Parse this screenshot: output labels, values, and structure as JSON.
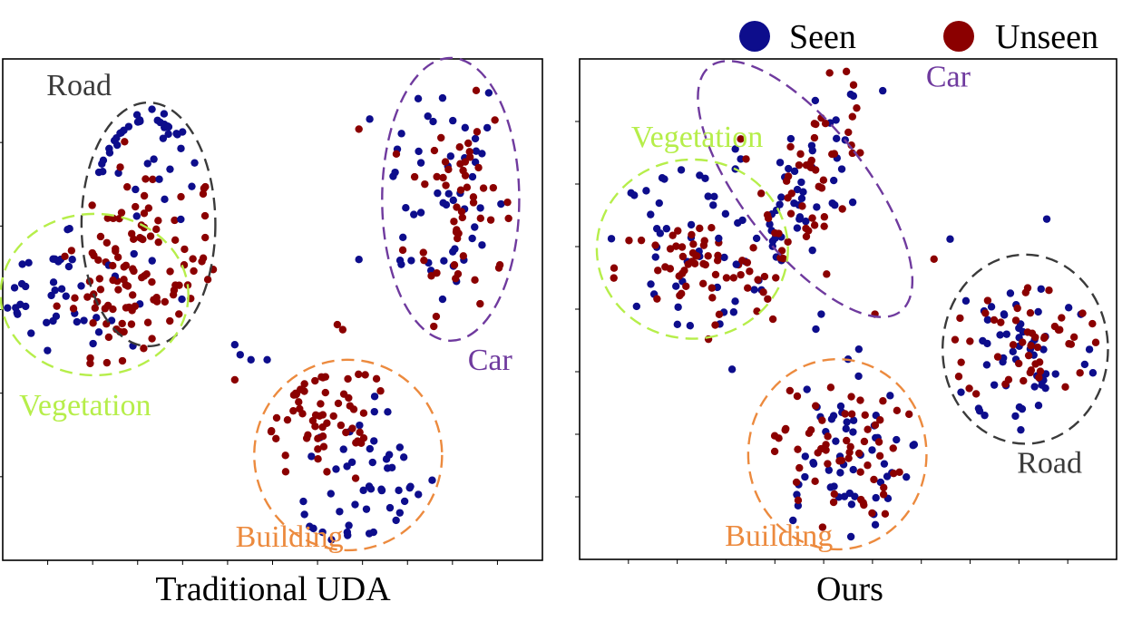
{
  "legend": {
    "placement": "top-right",
    "items": [
      {
        "label": "Seen",
        "color": "#0d0d8c"
      },
      {
        "label": "Unseen",
        "color": "#8b0000"
      }
    ]
  },
  "cluster_colors": {
    "Road": "#3a3a3a",
    "Car": "#6f3a9e",
    "Vegetation": "#b6ee4a",
    "Building": "#ec8a3e"
  },
  "chart_data": [
    {
      "type": "scatter",
      "caption": "Traditional UDA",
      "xlim": [
        0,
        100
      ],
      "ylim": [
        0,
        100
      ],
      "xticks": 12,
      "yticks": 6,
      "clusters": [
        {
          "name": "Road",
          "cx": 27,
          "cy": 67,
          "rx": 12.4,
          "ry": 24.3,
          "label_pos": "top-left",
          "points": [
            {
              "series": "Seen",
              "x": 27,
              "y": 87,
              "sx": 7,
              "sy": 7,
              "n": 40
            },
            {
              "series": "Unseen",
              "x": 27,
              "y": 61,
              "sx": 7,
              "sy": 9,
              "n": 55
            }
          ]
        },
        {
          "name": "Car",
          "cx": 83,
          "cy": 72,
          "rx": 12.7,
          "ry": 28.2,
          "label_pos": "bottom-right",
          "points": [
            {
              "series": "Seen",
              "x": 81,
              "y": 74,
              "sx": 6,
              "sy": 13,
              "n": 50
            },
            {
              "series": "Unseen",
              "x": 85,
              "y": 72,
              "sx": 5,
              "sy": 12,
              "n": 55
            }
          ]
        },
        {
          "name": "Vegetation",
          "cx": 17,
          "cy": 53,
          "rx": 17.4,
          "ry": 16.1,
          "label_pos": "bottom-left",
          "points": [
            {
              "series": "Seen",
              "x": 11,
              "y": 54,
              "sx": 8,
              "sy": 7,
              "n": 45
            },
            {
              "series": "Unseen",
              "x": 22,
              "y": 53,
              "sx": 6,
              "sy": 6,
              "n": 55
            }
          ]
        },
        {
          "name": "Building",
          "cx": 64,
          "cy": 21,
          "rx": 17.4,
          "ry": 19.0,
          "label_pos": "bottom-left",
          "points": [
            {
              "series": "Seen",
              "x": 67,
              "y": 14,
              "sx": 7,
              "sy": 8,
              "n": 50
            },
            {
              "series": "Unseen",
              "x": 59,
              "y": 28,
              "sx": 7,
              "sy": 7,
              "n": 60
            }
          ]
        }
      ],
      "outliers": [
        {
          "series": "Seen",
          "x": 29,
          "y": 76
        },
        {
          "series": "Seen",
          "x": 28,
          "y": 80
        },
        {
          "series": "Seen",
          "x": 31,
          "y": 78
        },
        {
          "series": "Seen",
          "x": 30,
          "y": 72
        },
        {
          "series": "Seen",
          "x": 33,
          "y": 68
        },
        {
          "series": "Seen",
          "x": 43,
          "y": 43
        },
        {
          "series": "Seen",
          "x": 44,
          "y": 41
        },
        {
          "series": "Seen",
          "x": 46,
          "y": 40
        },
        {
          "series": "Seen",
          "x": 49,
          "y": 40
        },
        {
          "series": "Seen",
          "x": 66,
          "y": 60
        },
        {
          "series": "Seen",
          "x": 68,
          "y": 88
        },
        {
          "series": "Unseen",
          "x": 39,
          "y": 58
        },
        {
          "series": "Unseen",
          "x": 38,
          "y": 56
        },
        {
          "series": "Unseen",
          "x": 62,
          "y": 47
        },
        {
          "series": "Unseen",
          "x": 63,
          "y": 46
        },
        {
          "series": "Unseen",
          "x": 43,
          "y": 36
        },
        {
          "series": "Unseen",
          "x": 66,
          "y": 86
        }
      ]
    },
    {
      "type": "scatter",
      "caption": "Ours",
      "xlim": [
        0,
        100
      ],
      "ylim": [
        0,
        100
      ],
      "xticks": 11,
      "yticks": 8,
      "clusters": [
        {
          "name": "Car",
          "cx": 42,
          "cy": 74,
          "rx": 11.5,
          "ry": 31.0,
          "rotate": -38,
          "label_pos": "top-right",
          "points": [
            {
              "series": "Seen",
              "x": 42,
              "y": 72,
              "sx": 6,
              "sy": 10,
              "n": 50,
              "corr": 0.7
            },
            {
              "series": "Unseen",
              "x": 43,
              "y": 76,
              "sx": 6,
              "sy": 10,
              "n": 55,
              "corr": 0.7
            }
          ]
        },
        {
          "name": "Vegetation",
          "cx": 21,
          "cy": 62,
          "rx": 17.8,
          "ry": 17.9,
          "label_pos": "top-left",
          "points": [
            {
              "series": "Seen",
              "x": 20,
              "y": 64,
              "sx": 8,
              "sy": 8,
              "n": 45
            },
            {
              "series": "Unseen",
              "x": 21,
              "y": 58,
              "sx": 7,
              "sy": 5,
              "n": 55
            }
          ]
        },
        {
          "name": "Road",
          "cx": 83,
          "cy": 42,
          "rx": 15.4,
          "ry": 18.9,
          "label_pos": "bottom-right",
          "points": [
            {
              "series": "Seen",
              "x": 83,
              "y": 42,
              "sx": 7,
              "sy": 9,
              "n": 55
            },
            {
              "series": "Unseen",
              "x": 84,
              "y": 43,
              "sx": 6,
              "sy": 6,
              "n": 50
            }
          ]
        },
        {
          "name": "Building",
          "cx": 48,
          "cy": 21,
          "rx": 16.6,
          "ry": 19.0,
          "label_pos": "bottom-left",
          "points": [
            {
              "series": "Seen",
              "x": 48,
              "y": 20,
              "sx": 7,
              "sy": 8,
              "n": 55
            },
            {
              "series": "Unseen",
              "x": 48,
              "y": 22,
              "sx": 6,
              "sy": 7,
              "n": 60
            }
          ]
        }
      ],
      "outliers": [
        {
          "series": "Seen",
          "x": 29,
          "y": 78
        },
        {
          "series": "Seen",
          "x": 29,
          "y": 82
        },
        {
          "series": "Seen",
          "x": 30,
          "y": 80
        },
        {
          "series": "Seen",
          "x": 45,
          "y": 49
        },
        {
          "series": "Seen",
          "x": 44,
          "y": 46
        },
        {
          "series": "Seen",
          "x": 50,
          "y": 40
        },
        {
          "series": "Seen",
          "x": 52,
          "y": 42
        },
        {
          "series": "Seen",
          "x": 69,
          "y": 64
        },
        {
          "series": "Seen",
          "x": 87,
          "y": 68
        },
        {
          "series": "Unseen",
          "x": 31,
          "y": 80
        },
        {
          "series": "Unseen",
          "x": 30,
          "y": 84
        },
        {
          "series": "Unseen",
          "x": 46,
          "y": 57
        },
        {
          "series": "Unseen",
          "x": 55,
          "y": 49
        },
        {
          "series": "Unseen",
          "x": 36,
          "y": 48
        },
        {
          "series": "Unseen",
          "x": 66,
          "y": 60
        },
        {
          "series": "Unseen",
          "x": 24,
          "y": 44
        }
      ]
    }
  ]
}
